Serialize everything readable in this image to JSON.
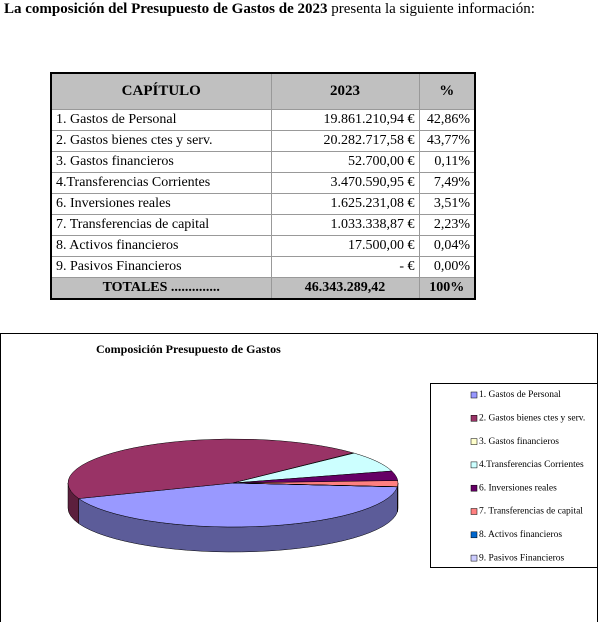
{
  "heading": {
    "bold": "La composición del Presupuesto de Gastos de 2023",
    "text": "presenta la siguiente información:"
  },
  "table": {
    "header": [
      "CAPÍTULO",
      "2023",
      "%"
    ],
    "rows": [
      [
        "1. Gastos de Personal",
        "19.861.210,94 €",
        "42,86%"
      ],
      [
        "2. Gastos bienes ctes y serv.",
        "20.282.717,58 €",
        "43,77%"
      ],
      [
        "3. Gastos financieros",
        "52.700,00 €",
        "0,11%"
      ],
      [
        "4.Transferencias Corrientes",
        "3.470.590,95 €",
        "7,49%"
      ],
      [
        "6. Inversiones reales",
        "1.625.231,08 €",
        "3,51%"
      ],
      [
        "7. Transferencias de capital",
        "1.033.338,87 €",
        "2,23%"
      ],
      [
        "8. Activos financieros",
        "17.500,00 €",
        "0,04%"
      ],
      [
        "9. Pasivos Financieros",
        "-   €",
        "0,00%"
      ]
    ],
    "totals": [
      "TOTALES ..............",
      "46.343.289,42",
      "100%"
    ]
  },
  "chart_data": {
    "type": "pie",
    "title": "Composición Presupuesto de Gastos",
    "categories": [
      "1. Gastos de Personal",
      "2. Gastos bienes ctes y serv.",
      "3. Gastos financieros",
      "4.Transferencias Corrientes",
      "6. Inversiones reales",
      "7. Transferencias de capital",
      "8. Activos financieros",
      "9. Pasivos Financieros"
    ],
    "values": [
      42.86,
      43.77,
      0.11,
      7.49,
      3.51,
      2.23,
      0.04,
      0.0
    ],
    "colors": [
      "#9999ff",
      "#993366",
      "#ffffcc",
      "#ccffff",
      "#660066",
      "#ff8080",
      "#0066cc",
      "#ccccff"
    ]
  }
}
